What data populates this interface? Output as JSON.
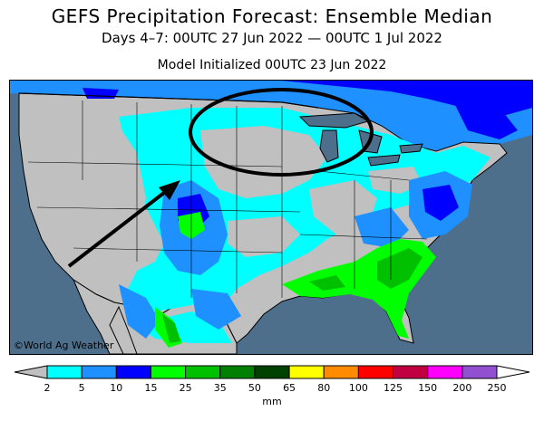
{
  "title": "GEFS Precipitation Forecast: Ensemble Median",
  "subtitle": "Days 4–7: 00UTC 27 Jun 2022 — 00UTC 1 Jul 2022",
  "init_line": "Model Initialized 00UTC 23 Jun 2022",
  "credit": "©World Ag Weather",
  "colors": {
    "ocean": "#4d6f8c",
    "land_dry": "#c0c0c0",
    "border": "#000000",
    "annotation": "#000000"
  },
  "legend": {
    "units": "mm",
    "ticks": [
      "2",
      "5",
      "10",
      "15",
      "25",
      "35",
      "50",
      "65",
      "80",
      "100",
      "125",
      "150",
      "200",
      "250"
    ],
    "bins": [
      {
        "color": "#c0c0c0",
        "label": "<2"
      },
      {
        "color": "#00ffff",
        "label": "2-5"
      },
      {
        "color": "#1e90ff",
        "label": "5-10"
      },
      {
        "color": "#0000ff",
        "label": "10-15"
      },
      {
        "color": "#00ff00",
        "label": "15-25"
      },
      {
        "color": "#00c000",
        "label": "25-35"
      },
      {
        "color": "#008000",
        "label": "35-50"
      },
      {
        "color": "#004000",
        "label": "50-65"
      },
      {
        "color": "#ffff00",
        "label": "65-80"
      },
      {
        "color": "#ff8c00",
        "label": "80-100"
      },
      {
        "color": "#ff0000",
        "label": "100-125"
      },
      {
        "color": "#c00040",
        "label": "125-150"
      },
      {
        "color": "#ff00ff",
        "label": "150-200"
      },
      {
        "color": "#9050d0",
        "label": "200-250"
      },
      {
        "color": "#ffffff",
        "label": ">250"
      }
    ]
  },
  "annotations": [
    {
      "type": "ellipse",
      "region": "Upper Midwest / Northern Plains"
    },
    {
      "type": "arrow",
      "target": "Colorado Rockies"
    }
  ]
}
